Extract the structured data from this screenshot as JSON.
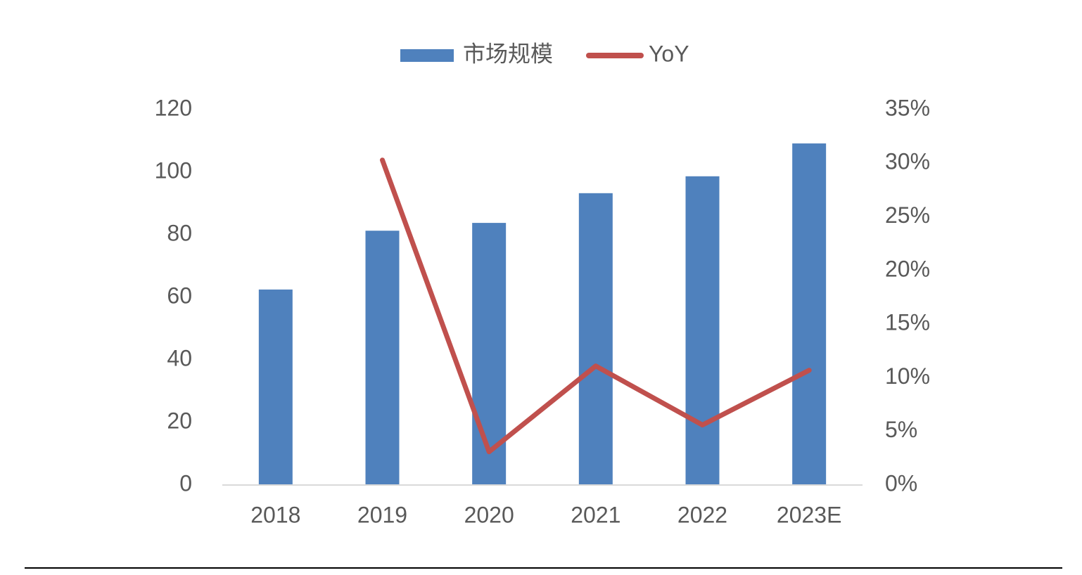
{
  "chart_data": {
    "type": "bar",
    "categories": [
      "2018",
      "2019",
      "2020",
      "2021",
      "2022",
      "2023E"
    ],
    "series": [
      {
        "name": "市场规模",
        "color": "#4f81bd",
        "values": [
          62.5,
          81.3,
          83.8,
          93.3,
          98.7,
          109.2
        ]
      },
      {
        "name": "YoY",
        "color": "#c0504d",
        "type": "line",
        "axis": "y2",
        "values": [
          null,
          30.3,
          3.1,
          11.1,
          5.6,
          10.7
        ]
      }
    ],
    "ylim": [
      0,
      120
    ],
    "yticks": [
      0,
      20,
      40,
      60,
      80,
      100,
      120
    ],
    "y2lim": [
      0,
      35
    ],
    "y2ticks": [
      {
        "value": 0,
        "label": "0%"
      },
      {
        "value": 5,
        "label": "5%"
      },
      {
        "value": 10,
        "label": "10%"
      },
      {
        "value": 15,
        "label": "15%"
      },
      {
        "value": 20,
        "label": "20%"
      },
      {
        "value": 25,
        "label": "25%"
      },
      {
        "value": 30,
        "label": "30%"
      },
      {
        "value": 35,
        "label": "35%"
      }
    ],
    "legend": "top",
    "grid": false
  }
}
